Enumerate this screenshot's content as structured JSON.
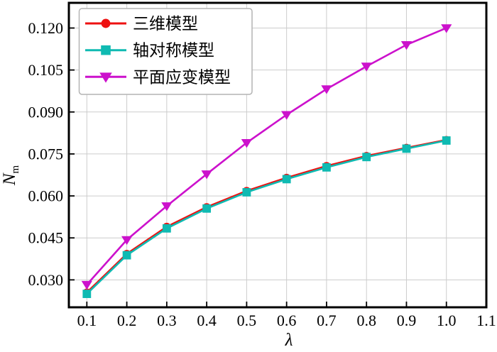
{
  "figure": {
    "kind": "scientific-line-chart",
    "background": "#ffffff"
  },
  "chart_data": {
    "type": "line",
    "title": "",
    "xlabel": "λ",
    "ylabel": "Nm",
    "ylabel_parts": {
      "main": "N",
      "sub": "m"
    },
    "x": [
      0.1,
      0.2,
      0.3,
      0.4,
      0.5,
      0.6,
      0.7,
      0.8,
      0.9,
      1.0
    ],
    "series": [
      {
        "key": "3d-model",
        "name": "三维模型",
        "color": "#ee1111",
        "marker": "circle",
        "values": [
          0.0255,
          0.0393,
          0.049,
          0.056,
          0.0618,
          0.0665,
          0.0707,
          0.0743,
          0.0772,
          0.08
        ]
      },
      {
        "key": "axisymmetric-model",
        "name": "轴对称模型",
        "color": "#0fbab2",
        "marker": "square",
        "values": [
          0.025,
          0.0388,
          0.0484,
          0.0555,
          0.0613,
          0.066,
          0.0702,
          0.0739,
          0.0769,
          0.0798
        ]
      },
      {
        "key": "plane-strain-model",
        "name": "平面应变模型",
        "color": "#cc11cc",
        "marker": "triangle-down",
        "values": [
          0.0283,
          0.0443,
          0.0564,
          0.0678,
          0.079,
          0.089,
          0.0982,
          0.1063,
          0.114,
          0.12
        ]
      }
    ],
    "xlim": [
      0.055,
      1.1
    ],
    "ylim": [
      0.0202,
      0.129
    ],
    "x_ticks": [
      "0.1",
      "0.2",
      "0.3",
      "0.4",
      "0.5",
      "0.6",
      "0.7",
      "0.8",
      "0.9",
      "1.0",
      "1.1"
    ],
    "y_ticks": [
      "0.030",
      "0.045",
      "0.060",
      "0.075",
      "0.090",
      "0.105",
      "0.120"
    ],
    "grid": true,
    "grid_color": "#cccccc",
    "axis_color": "#000000",
    "tick_direction": "in",
    "legend": {
      "position": "upper-left",
      "background": "#ffffff",
      "border_color": "#b4b4b4"
    }
  }
}
